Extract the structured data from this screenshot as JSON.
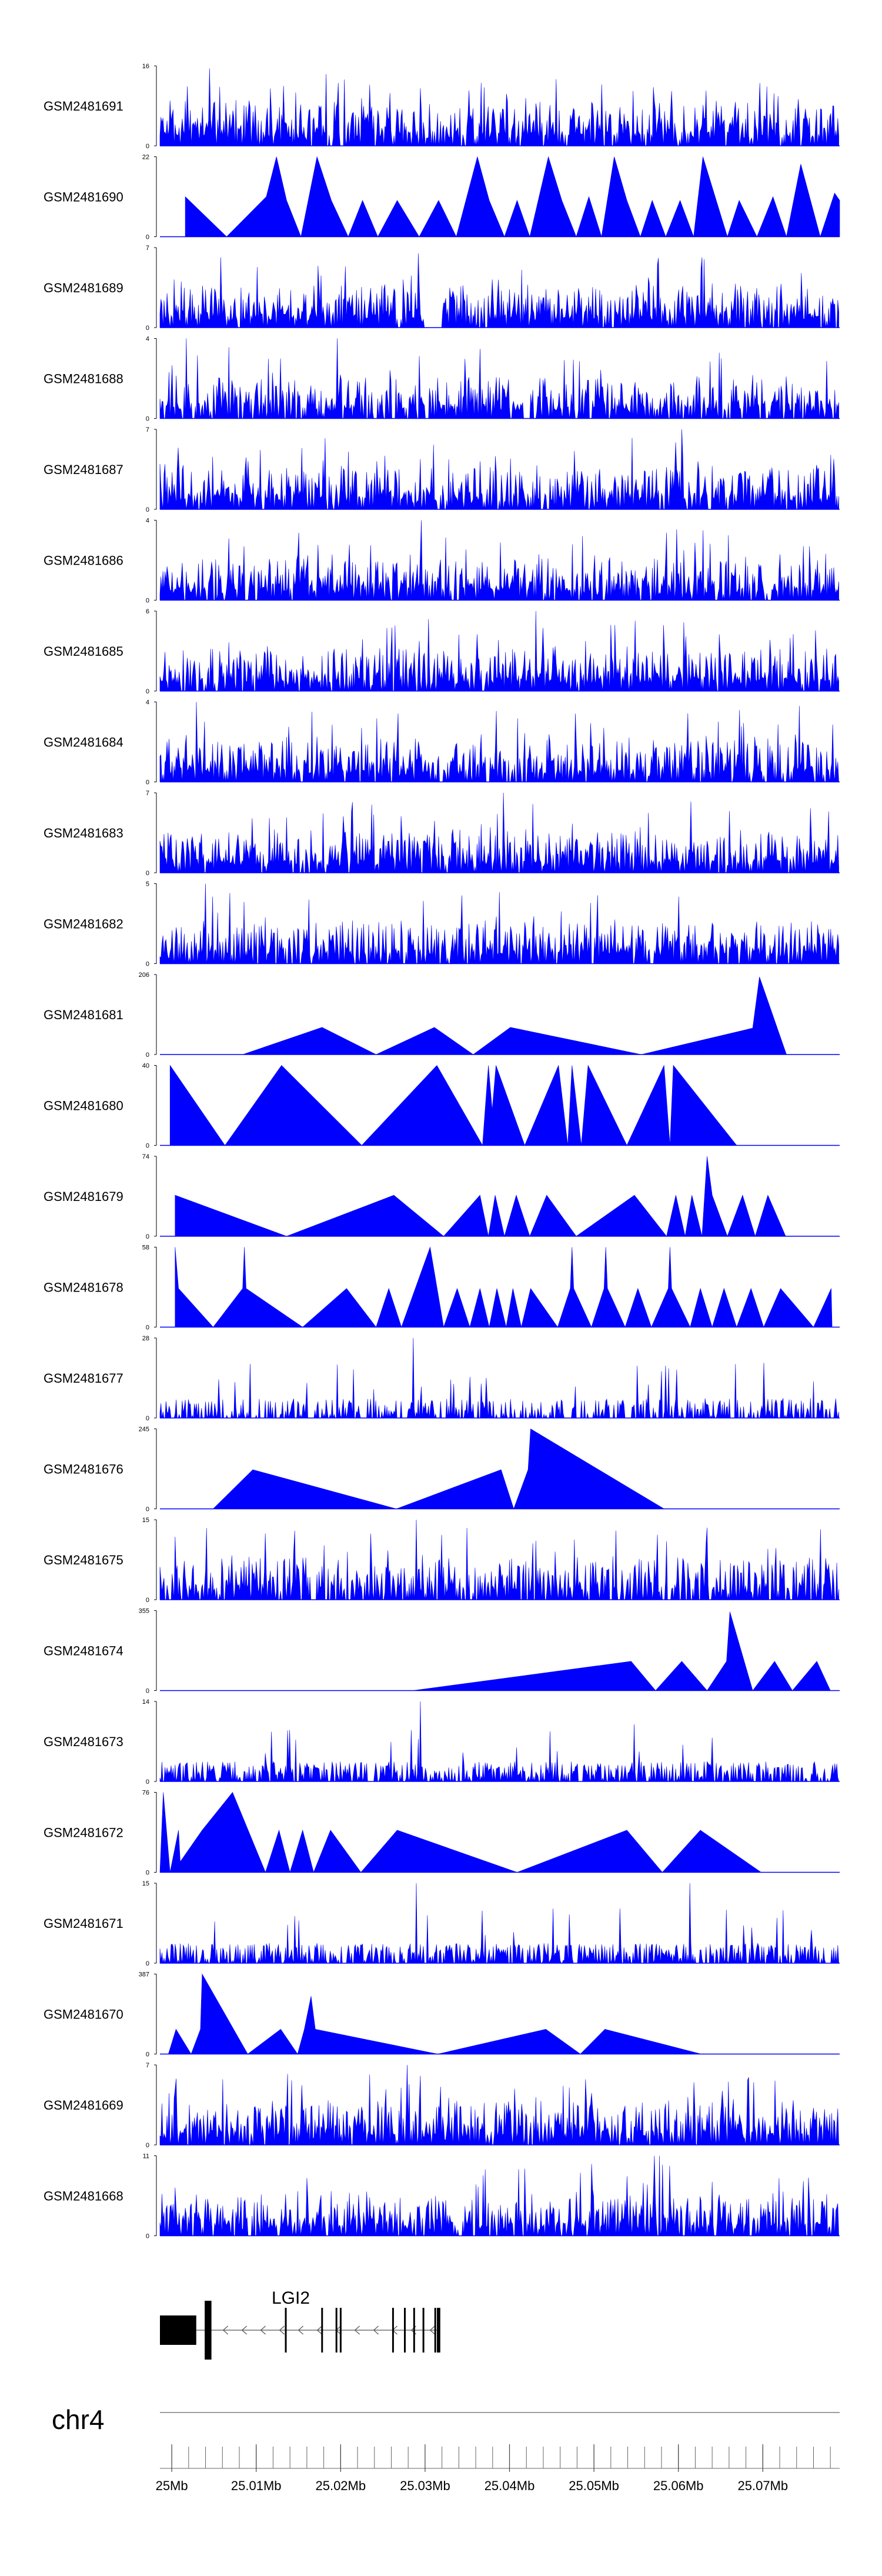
{
  "chart_data": {
    "type": "area",
    "title": "",
    "chromosome": "chr4",
    "x_unit": "Mb",
    "xlim": [
      24.9986,
      25.0791
    ],
    "x_ticks": [
      25.0,
      25.01,
      25.02,
      25.03,
      25.04,
      25.05,
      25.06,
      25.07
    ],
    "x_tick_labels": [
      "25Mb",
      "25.01Mb",
      "25.02Mb",
      "25.03Mb",
      "25.04Mb",
      "25.05Mb",
      "25.06Mb",
      "25.07Mb"
    ],
    "minor_tick_step": 0.002,
    "color": "#0000ff",
    "gene": {
      "name": "LGI2",
      "strand": "-",
      "start": 24.9986,
      "end": 25.0318,
      "exons": [
        [
          24.9986,
          25.0029
        ],
        [
          25.0039,
          25.0047
        ],
        [
          25.0134,
          25.0135
        ],
        [
          25.0177,
          25.0179
        ],
        [
          25.0194,
          25.0195
        ],
        [
          25.0199,
          25.02
        ],
        [
          25.0261,
          25.0262
        ],
        [
          25.0275,
          25.0276
        ],
        [
          25.0286,
          25.0287
        ],
        [
          25.0297,
          25.0298
        ],
        [
          25.0311,
          25.0312
        ],
        [
          25.0314,
          25.0318
        ]
      ]
    },
    "tracks": [
      {
        "name": "GSM2481691",
        "ylim": [
          0,
          16
        ],
        "style": "spiky",
        "seed": 11,
        "density": 1.0,
        "peaks": [
          [
            25.0045,
            15.5
          ],
          [
            25.0294,
            11.5
          ],
          [
            25.0196,
            8.5
          ]
        ]
      },
      {
        "name": "GSM2481690",
        "ylim": [
          0,
          22
        ],
        "style": "triangles",
        "points": [
          [
            25.0016,
            11
          ],
          [
            25.0065,
            0
          ],
          [
            25.0112,
            11
          ],
          [
            25.0124,
            22
          ],
          [
            25.0136,
            10
          ],
          [
            25.0153,
            0
          ],
          [
            25.0172,
            22
          ],
          [
            25.0189,
            10
          ],
          [
            25.0209,
            0
          ],
          [
            25.0226,
            10
          ],
          [
            25.0244,
            0
          ],
          [
            25.0267,
            10
          ],
          [
            25.0293,
            0
          ],
          [
            25.0316,
            10
          ],
          [
            25.0337,
            0
          ],
          [
            25.0362,
            22
          ],
          [
            25.0376,
            10
          ],
          [
            25.0394,
            0
          ],
          [
            25.0409,
            10
          ],
          [
            25.0424,
            0
          ],
          [
            25.0446,
            22
          ],
          [
            25.0462,
            10
          ],
          [
            25.0479,
            0
          ],
          [
            25.0494,
            11
          ],
          [
            25.0509,
            0
          ],
          [
            25.0524,
            22
          ],
          [
            25.0539,
            10
          ],
          [
            25.0555,
            0
          ],
          [
            25.0569,
            10
          ],
          [
            25.0585,
            0
          ],
          [
            25.0602,
            10
          ],
          [
            25.0618,
            0
          ],
          [
            25.0629,
            22
          ],
          [
            25.0658,
            0
          ],
          [
            25.0672,
            10
          ],
          [
            25.0693,
            0
          ],
          [
            25.0712,
            11
          ],
          [
            25.0728,
            0
          ],
          [
            25.0745,
            20
          ],
          [
            25.0768,
            0
          ],
          [
            25.0785,
            12
          ],
          [
            25.0791,
            10
          ]
        ]
      },
      {
        "name": "GSM2481689",
        "ylim": [
          0,
          7
        ],
        "style": "spiky",
        "seed": 23,
        "density": 1.0,
        "peaks": [
          [
            25.0292,
            6.5
          ]
        ],
        "gaps": [
          [
            25.03,
            25.032
          ]
        ]
      },
      {
        "name": "GSM2481688",
        "ylim": [
          0,
          4
        ],
        "style": "spiky",
        "seed": 37,
        "density": 0.9,
        "peaks": [
          [
            25.0017,
            4.0
          ],
          [
            25.0196,
            4.0
          ]
        ]
      },
      {
        "name": "GSM2481687",
        "ylim": [
          0,
          7
        ],
        "style": "spiky",
        "seed": 41,
        "density": 1.0,
        "peaks": [
          [
            25.0604,
            7.0
          ]
        ]
      },
      {
        "name": "GSM2481686",
        "ylim": [
          0,
          4
        ],
        "style": "spiky",
        "seed": 53,
        "density": 1.0,
        "peaks": [
          [
            25.0296,
            4.0
          ]
        ]
      },
      {
        "name": "GSM2481685",
        "ylim": [
          0,
          6
        ],
        "style": "spiky",
        "seed": 67,
        "density": 1.0,
        "peaks": [
          [
            25.0431,
            6.0
          ]
        ]
      },
      {
        "name": "GSM2481684",
        "ylim": [
          0,
          4
        ],
        "style": "spiky",
        "seed": 71,
        "density": 1.0,
        "peaks": [
          [
            25.0029,
            4.0
          ],
          [
            25.0743,
            3.8
          ]
        ]
      },
      {
        "name": "GSM2481683",
        "ylim": [
          0,
          7
        ],
        "style": "spiky",
        "seed": 83,
        "density": 1.0,
        "peaks": [
          [
            25.0393,
            7.0
          ]
        ]
      },
      {
        "name": "GSM2481682",
        "ylim": [
          0,
          5
        ],
        "style": "spiky",
        "seed": 97,
        "density": 1.0,
        "peaks": [
          [
            25.004,
            5.0
          ]
        ]
      },
      {
        "name": "GSM2481681",
        "ylim": [
          0,
          206
        ],
        "style": "triangles",
        "points": [
          [
            24.9986,
            0
          ],
          [
            25.0084,
            0
          ],
          [
            25.0178,
            70
          ],
          [
            25.0242,
            0
          ],
          [
            25.0311,
            70
          ],
          [
            25.0357,
            0
          ],
          [
            25.0401,
            70
          ],
          [
            25.0556,
            0
          ],
          [
            25.0688,
            68
          ],
          [
            25.0696,
            200
          ],
          [
            25.0728,
            0
          ]
        ]
      },
      {
        "name": "GSM2481680",
        "ylim": [
          0,
          40
        ],
        "style": "triangles",
        "points": [
          [
            24.9998,
            40
          ],
          [
            25.0063,
            0
          ],
          [
            25.013,
            40
          ],
          [
            25.0225,
            0
          ],
          [
            25.0314,
            40
          ],
          [
            25.0368,
            0
          ],
          [
            25.0375,
            40
          ],
          [
            25.0383,
            0
          ],
          [
            25.0376,
            0
          ],
          [
            25.0384,
            40
          ],
          [
            25.0418,
            0
          ],
          [
            25.0458,
            40
          ],
          [
            25.0469,
            0
          ],
          [
            25.0474,
            40
          ],
          [
            25.0485,
            0
          ],
          [
            25.0493,
            40
          ],
          [
            25.0539,
            0
          ],
          [
            25.0583,
            40
          ],
          [
            25.059,
            0
          ],
          [
            25.0594,
            40
          ],
          [
            25.0669,
            0
          ]
        ]
      },
      {
        "name": "GSM2481679",
        "ylim": [
          0,
          74
        ],
        "style": "triangles",
        "points": [
          [
            25.0004,
            38
          ],
          [
            25.0136,
            0
          ],
          [
            25.0263,
            38
          ],
          [
            25.0322,
            0
          ],
          [
            25.0365,
            38
          ],
          [
            25.0375,
            0
          ],
          [
            25.0383,
            38
          ],
          [
            25.0394,
            0
          ],
          [
            25.0408,
            38
          ],
          [
            25.0424,
            0
          ],
          [
            25.0444,
            38
          ],
          [
            25.0479,
            0
          ],
          [
            25.0548,
            38
          ],
          [
            25.0586,
            0
          ],
          [
            25.0597,
            38
          ],
          [
            25.0608,
            0
          ],
          [
            25.0616,
            38
          ],
          [
            25.0628,
            0
          ],
          [
            25.0634,
            74
          ],
          [
            25.064,
            38
          ],
          [
            25.0658,
            0
          ],
          [
            25.0676,
            38
          ],
          [
            25.0691,
            0
          ],
          [
            25.0706,
            38
          ],
          [
            25.0727,
            0
          ]
        ]
      },
      {
        "name": "GSM2481678",
        "ylim": [
          0,
          58
        ],
        "style": "triangles",
        "points": [
          [
            25.0004,
            58
          ],
          [
            25.0008,
            28
          ],
          [
            25.0049,
            0
          ],
          [
            25.0084,
            28
          ],
          [
            25.0086,
            58
          ],
          [
            25.0088,
            28
          ],
          [
            25.0155,
            0
          ],
          [
            25.0207,
            28
          ],
          [
            25.0242,
            0
          ],
          [
            25.0257,
            28
          ],
          [
            25.0272,
            0
          ],
          [
            25.0306,
            58
          ],
          [
            25.0322,
            0
          ],
          [
            25.0338,
            28
          ],
          [
            25.0353,
            0
          ],
          [
            25.0365,
            28
          ],
          [
            25.0376,
            0
          ],
          [
            25.0385,
            28
          ],
          [
            25.0396,
            0
          ],
          [
            25.0404,
            28
          ],
          [
            25.0414,
            0
          ],
          [
            25.0425,
            28
          ],
          [
            25.0457,
            0
          ],
          [
            25.0472,
            28
          ],
          [
            25.0474,
            58
          ],
          [
            25.0476,
            28
          ],
          [
            25.0497,
            0
          ],
          [
            25.0512,
            28
          ],
          [
            25.0514,
            58
          ],
          [
            25.0516,
            28
          ],
          [
            25.0537,
            0
          ],
          [
            25.0552,
            28
          ],
          [
            25.0568,
            0
          ],
          [
            25.0588,
            28
          ],
          [
            25.059,
            58
          ],
          [
            25.0592,
            28
          ],
          [
            25.0614,
            0
          ],
          [
            25.0626,
            28
          ],
          [
            25.064,
            0
          ],
          [
            25.0654,
            28
          ],
          [
            25.0669,
            0
          ],
          [
            25.0686,
            28
          ],
          [
            25.0701,
            0
          ],
          [
            25.0721,
            28
          ],
          [
            25.076,
            0
          ],
          [
            25.0781,
            28
          ],
          [
            25.0782,
            0
          ]
        ]
      },
      {
        "name": "GSM2481677",
        "ylim": [
          0,
          28
        ],
        "style": "lowspiky",
        "seed": 131,
        "density": 0.8,
        "peaks": [
          [
            25.0286,
            28
          ],
          [
            25.0295,
            11
          ],
          [
            25.0372,
            14
          ]
        ]
      },
      {
        "name": "GSM2481676",
        "ylim": [
          0,
          245
        ],
        "style": "triangles",
        "points": [
          [
            24.9986,
            0
          ],
          [
            25.0049,
            0
          ],
          [
            25.0096,
            120
          ],
          [
            25.0266,
            0
          ],
          [
            25.039,
            120
          ],
          [
            25.0405,
            0
          ],
          [
            25.0422,
            120
          ],
          [
            25.0425,
            245
          ],
          [
            25.0583,
            0
          ]
        ]
      },
      {
        "name": "GSM2481675",
        "ylim": [
          0,
          15
        ],
        "style": "spiky",
        "seed": 149,
        "density": 0.85,
        "peaks": [
          [
            25.029,
            15.0
          ]
        ]
      },
      {
        "name": "GSM2481674",
        "ylim": [
          0,
          355
        ],
        "style": "triangles",
        "points": [
          [
            24.9986,
            0
          ],
          [
            25.0285,
            0
          ],
          [
            25.0544,
            130
          ],
          [
            25.0573,
            0
          ],
          [
            25.0604,
            130
          ],
          [
            25.0634,
            0
          ],
          [
            25.0657,
            130
          ],
          [
            25.0661,
            350
          ],
          [
            25.0688,
            0
          ],
          [
            25.0714,
            130
          ],
          [
            25.0735,
            0
          ],
          [
            25.0764,
            130
          ],
          [
            25.078,
            0
          ]
        ]
      },
      {
        "name": "GSM2481673",
        "ylim": [
          0,
          14
        ],
        "style": "lowspiky",
        "seed": 163,
        "density": 1.0,
        "peaks": [
          [
            25.0294,
            14.0
          ],
          [
            25.0284,
            9.0
          ],
          [
            25.0547,
            10.0
          ]
        ]
      },
      {
        "name": "GSM2481672",
        "ylim": [
          0,
          76
        ],
        "style": "triangles",
        "points": [
          [
            24.9986,
            0
          ],
          [
            24.999,
            76
          ],
          [
            24.9998,
            0
          ],
          [
            25.0008,
            40
          ],
          [
            25.001,
            10
          ],
          [
            25.0036,
            40
          ],
          [
            25.0072,
            76
          ],
          [
            25.0111,
            0
          ],
          [
            25.0127,
            40
          ],
          [
            25.014,
            0
          ],
          [
            25.0155,
            40
          ],
          [
            25.0168,
            0
          ],
          [
            25.0188,
            40
          ],
          [
            25.0224,
            0
          ],
          [
            25.0267,
            40
          ],
          [
            25.0409,
            0
          ],
          [
            25.0539,
            40
          ],
          [
            25.0581,
            0
          ],
          [
            25.0626,
            40
          ],
          [
            25.0698,
            0
          ]
        ]
      },
      {
        "name": "GSM2481671",
        "ylim": [
          0,
          15
        ],
        "style": "lowspiky",
        "seed": 181,
        "density": 1.0,
        "peaks": [
          [
            25.0289,
            15.0
          ],
          [
            25.0613,
            15.0
          ],
          [
            25.0657,
            10.0
          ]
        ]
      },
      {
        "name": "GSM2481670",
        "ylim": [
          0,
          387
        ],
        "style": "triangles",
        "points": [
          [
            24.9996,
            0
          ],
          [
            25.0005,
            120
          ],
          [
            25.0023,
            0
          ],
          [
            25.0034,
            120
          ],
          [
            25.0036,
            387
          ],
          [
            25.009,
            0
          ],
          [
            25.0129,
            120
          ],
          [
            25.0149,
            0
          ],
          [
            25.0157,
            120
          ],
          [
            25.0165,
            280
          ],
          [
            25.017,
            120
          ],
          [
            25.0315,
            0
          ],
          [
            25.0443,
            120
          ],
          [
            25.0484,
            0
          ],
          [
            25.0513,
            120
          ],
          [
            25.0627,
            0
          ]
        ]
      },
      {
        "name": "GSM2481669",
        "ylim": [
          0,
          7
        ],
        "style": "spiky",
        "seed": 199,
        "density": 1.0,
        "peaks": [
          [
            25.0279,
            7.0
          ]
        ]
      },
      {
        "name": "GSM2481668",
        "ylim": [
          0,
          11
        ],
        "style": "spiky",
        "seed": 211,
        "density": 0.95,
        "peaks": [
          [
            25.0571,
            11.0
          ],
          [
            25.0578,
            11.0
          ]
        ]
      }
    ]
  }
}
